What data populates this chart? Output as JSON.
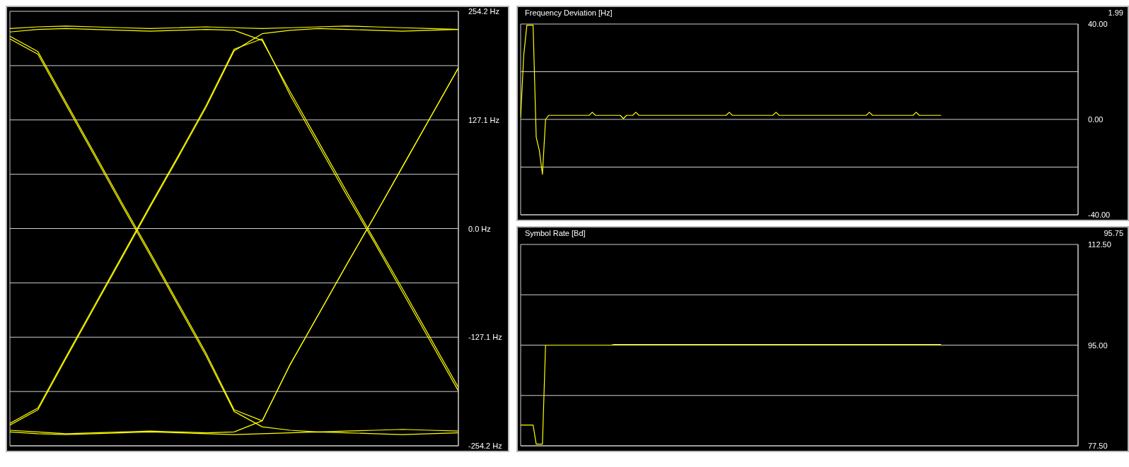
{
  "chart_data": [
    {
      "type": "line",
      "categories": [
        null,
        null,
        null,
        null,
        null,
        null,
        null,
        null,
        null,
        null,
        null,
        null,
        null,
        null,
        null,
        null,
        null
      ],
      "ylim": [
        -254.2,
        254.2
      ],
      "yticks": [
        {
          "value": 254.2,
          "label": "254.2 Hz"
        },
        {
          "value": 190.65,
          "label": null
        },
        {
          "value": 127.1,
          "label": "127.1 Hz"
        },
        {
          "value": 63.55,
          "label": null
        },
        {
          "value": 0,
          "label": "0.0 Hz"
        },
        {
          "value": -63.55,
          "label": null
        },
        {
          "value": -127.1,
          "label": "-127.1 Hz"
        },
        {
          "value": -190.65,
          "label": null
        },
        {
          "value": -254.2,
          "label": "-254.2 Hz"
        }
      ],
      "grid": true,
      "tick_labels": "y",
      "series": [
        {
          "color": "#ffff00",
          "values": [
            234,
            236,
            237,
            236,
            235,
            234,
            235,
            236,
            235,
            234,
            235,
            236,
            237,
            236,
            235,
            234,
            233
          ]
        },
        {
          "color": "#ffff00",
          "values": [
            -238,
            -240,
            -241,
            -240,
            -239,
            -238,
            -239,
            -240,
            -241,
            -240,
            -239,
            -238,
            -239,
            -240,
            -241,
            -240,
            -239
          ]
        },
        {
          "color": "#ffff00",
          "values": [
            225,
            207,
            148,
            89,
            30,
            -28,
            -87,
            -146,
            -212,
            -225,
            -159,
            -101,
            -43,
            14,
            72,
            130,
            188
          ]
        },
        {
          "color": "#ffff00",
          "values": [
            -228,
            -210,
            -150,
            -91,
            -32,
            27,
            85,
            144,
            210,
            222,
            156,
            98,
            40,
            -16,
            -74,
            -132,
            -190
          ]
        },
        {
          "color": "#ffff00",
          "values": [
            222,
            204,
            145,
            86,
            27,
            -31,
            -90,
            -149,
            -214,
            -232,
            -236,
            -238,
            -237,
            -236,
            -235,
            -236,
            -237
          ]
        },
        {
          "color": "#ffff00",
          "values": [
            -230,
            -212,
            -152,
            -93,
            -34,
            25,
            83,
            142,
            208,
            228,
            232,
            234,
            233,
            232,
            231,
            232,
            233
          ]
        },
        {
          "color": "#ffff00",
          "values": [
            230,
            233,
            234,
            233,
            232,
            231,
            232,
            233,
            232,
            220,
            160,
            102,
            44,
            -13,
            -70,
            -128,
            -186
          ]
        },
        {
          "color": "#ffff00",
          "values": [
            -236,
            -238,
            -240,
            -239,
            -238,
            -237,
            -238,
            -239,
            -238,
            -225,
            -159,
            -101,
            -43,
            14,
            72,
            130,
            188
          ]
        }
      ]
    },
    {
      "type": "line",
      "title": "Frequency Deviation [Hz]",
      "annotations": [
        "1.99"
      ],
      "categories": [
        null,
        null,
        null,
        null,
        null,
        null,
        null,
        null,
        null,
        null,
        null,
        null,
        null,
        null,
        null,
        null,
        null,
        null,
        null,
        null,
        null,
        null,
        null,
        null,
        null,
        null,
        null,
        null,
        null,
        null,
        null,
        null,
        null,
        null,
        null,
        null,
        null,
        null,
        null,
        null,
        null,
        null,
        null,
        null,
        null,
        null,
        null,
        null,
        null,
        null,
        null,
        null,
        null,
        null,
        null,
        null,
        null,
        null,
        null,
        null,
        null,
        null,
        null,
        null,
        null,
        null,
        null,
        null,
        null,
        null,
        null,
        null,
        null,
        null,
        null,
        null,
        null,
        null,
        null,
        null,
        null,
        null,
        null,
        null,
        null,
        null,
        null,
        null,
        null,
        null,
        null,
        null,
        null,
        null,
        null,
        null,
        null,
        null,
        null,
        null,
        null,
        null,
        null,
        null,
        null,
        null,
        null,
        null,
        null,
        null,
        null,
        null,
        null,
        null,
        null,
        null,
        null,
        null,
        null,
        null,
        null,
        null,
        null,
        null,
        null,
        null,
        null,
        null,
        null,
        null,
        null,
        null,
        null,
        null,
        null,
        null,
        null,
        null,
        null,
        null,
        null,
        null,
        null,
        null,
        null,
        null,
        null,
        null,
        null,
        null,
        null,
        null,
        null,
        null,
        null,
        null,
        null,
        null,
        null,
        null,
        null,
        null,
        null,
        null,
        null,
        null,
        null,
        null,
        null,
        null,
        null,
        null,
        null,
        null,
        null,
        null,
        null,
        null,
        null,
        null
      ],
      "ylim": [
        -40,
        40
      ],
      "yticks": [
        {
          "value": 40,
          "label": "40.00"
        },
        {
          "value": 20,
          "label": null
        },
        {
          "value": 0,
          "label": "0.00"
        },
        {
          "value": -20,
          "label": null
        },
        {
          "value": -40,
          "label": "-40.00"
        }
      ],
      "grid": true,
      "tick_labels": "y",
      "series": [
        {
          "color": "#ffff00",
          "values": [
            0.8,
            27,
            39.5,
            39.5,
            39.5,
            -7.5,
            -13,
            -23,
            0,
            1.7,
            1.7,
            1.7,
            1.7,
            1.7,
            1.7,
            1.7,
            1.7,
            1.7,
            1.7,
            1.7,
            1.7,
            1.7,
            1.7,
            3,
            1.7,
            1.7,
            1.7,
            1.7,
            1.7,
            1.7,
            1.7,
            1.7,
            1.7,
            0.3,
            1.7,
            1.7,
            1.7,
            3,
            1.7,
            1.7,
            1.7,
            1.7,
            1.7,
            1.7,
            1.7,
            1.7,
            1.7,
            1.7,
            1.7,
            1.7,
            1.7,
            1.7,
            1.7,
            1.7,
            1.7,
            1.7,
            1.7,
            1.7,
            1.7,
            1.7,
            1.7,
            1.7,
            1.7,
            1.7,
            1.7,
            1.7,
            1.7,
            3,
            1.7,
            1.7,
            1.7,
            1.7,
            1.7,
            1.7,
            1.7,
            1.7,
            1.7,
            1.7,
            1.7,
            1.7,
            1.7,
            1.7,
            3,
            1.7,
            1.7,
            1.7,
            1.7,
            1.7,
            1.7,
            1.7,
            1.7,
            1.7,
            1.7,
            1.7,
            1.7,
            1.7,
            1.7,
            1.7,
            1.7,
            1.7,
            1.7,
            1.7,
            1.7,
            1.7,
            1.7,
            1.7,
            1.7,
            1.7,
            1.7,
            1.7,
            1.7,
            1.7,
            3,
            1.7,
            1.7,
            1.7,
            1.7,
            1.7,
            1.7,
            1.7,
            1.7,
            1.7,
            1.7,
            1.7,
            1.7,
            1.7,
            1.7,
            3,
            1.7,
            1.7,
            1.7,
            1.7,
            1.7,
            1.7,
            1.7,
            1.7,
            null,
            null,
            null,
            null,
            null,
            null,
            null,
            null,
            null,
            null,
            null,
            null,
            null,
            null,
            null,
            null,
            null,
            null,
            null,
            null,
            null,
            null,
            null,
            null,
            null,
            null,
            null,
            null,
            null,
            null,
            null,
            null,
            null,
            null,
            null,
            null,
            null,
            null,
            null,
            null,
            null,
            null,
            null,
            null
          ]
        }
      ]
    },
    {
      "type": "line",
      "title": "Symbol Rate [Bd]",
      "annotations": [
        "95.75"
      ],
      "categories": [
        null,
        null,
        null,
        null,
        null,
        null,
        null,
        null,
        null,
        null,
        null,
        null,
        null,
        null,
        null,
        null,
        null,
        null,
        null,
        null,
        null,
        null,
        null,
        null,
        null,
        null,
        null,
        null,
        null,
        null,
        null,
        null,
        null,
        null,
        null,
        null,
        null,
        null,
        null,
        null,
        null,
        null,
        null,
        null,
        null,
        null,
        null,
        null,
        null,
        null,
        null,
        null,
        null,
        null,
        null,
        null,
        null,
        null,
        null,
        null,
        null,
        null,
        null,
        null,
        null,
        null,
        null,
        null,
        null,
        null,
        null,
        null,
        null,
        null,
        null,
        null,
        null,
        null,
        null,
        null,
        null,
        null,
        null,
        null,
        null,
        null,
        null,
        null,
        null,
        null,
        null,
        null,
        null,
        null,
        null,
        null,
        null,
        null,
        null,
        null,
        null,
        null,
        null,
        null,
        null,
        null,
        null,
        null,
        null,
        null,
        null,
        null,
        null,
        null,
        null,
        null,
        null,
        null,
        null,
        null,
        null,
        null,
        null,
        null,
        null,
        null,
        null,
        null,
        null,
        null,
        null,
        null,
        null,
        null,
        null,
        null,
        null,
        null,
        null,
        null,
        null,
        null,
        null,
        null,
        null,
        null,
        null,
        null,
        null,
        null,
        null,
        null,
        null,
        null,
        null,
        null,
        null,
        null,
        null,
        null,
        null,
        null,
        null,
        null,
        null,
        null,
        null,
        null,
        null,
        null,
        null,
        null,
        null,
        null,
        null,
        null,
        null,
        null,
        null,
        null
      ],
      "ylim": [
        77.5,
        112.5
      ],
      "yticks": [
        {
          "value": 112.5,
          "label": "112.50"
        },
        {
          "value": 103.75,
          "label": null
        },
        {
          "value": 95,
          "label": "95.00"
        },
        {
          "value": 86.25,
          "label": null
        },
        {
          "value": 77.5,
          "label": "77.50"
        }
      ],
      "grid": true,
      "tick_labels": "y",
      "series": [
        {
          "color": "#ffff00",
          "values": [
            81.1,
            81.1,
            81.1,
            81.1,
            81.1,
            77.8,
            77.8,
            77.8,
            95,
            95,
            95,
            95,
            95,
            95,
            95,
            95,
            95,
            95,
            95,
            95,
            95,
            95,
            95,
            95,
            95,
            95,
            95,
            95,
            95,
            95,
            95.1,
            95.1,
            95.1,
            95.1,
            95.1,
            95.1,
            95.1,
            95.1,
            95.1,
            95.1,
            95.1,
            95.1,
            95.1,
            95.1,
            95.1,
            95.1,
            95.1,
            95.1,
            95.1,
            95.1,
            95.1,
            95.1,
            95.1,
            95.1,
            95.1,
            95.1,
            95.1,
            95.1,
            95.1,
            95.1,
            95.1,
            95.1,
            95.1,
            95.1,
            95.1,
            95.1,
            95.1,
            95.1,
            95.1,
            95.1,
            95.1,
            95.1,
            95.1,
            95.1,
            95.1,
            95.1,
            95.1,
            95.1,
            95.1,
            95.1,
            95.1,
            95.1,
            95.1,
            95.1,
            95.1,
            95.1,
            95.1,
            95.1,
            95.1,
            95.1,
            95.1,
            95.1,
            95.1,
            95.1,
            95.1,
            95.1,
            95.1,
            95.1,
            95.1,
            95.1,
            95.1,
            95.1,
            95.1,
            95.1,
            95.1,
            95.1,
            95.1,
            95.1,
            95.1,
            95.1,
            95.1,
            95.1,
            95.1,
            95.1,
            95.1,
            95.1,
            95.1,
            95.1,
            95.1,
            95.1,
            95.1,
            95.1,
            95.1,
            95.1,
            95.1,
            95.1,
            95.1,
            95.1,
            95.1,
            95.1,
            95.1,
            95.1,
            95.1,
            95.1,
            95.1,
            95.1,
            null,
            null,
            null,
            null,
            null,
            null,
            null,
            null,
            null,
            null,
            null,
            null,
            null,
            null,
            null,
            null,
            null,
            null,
            null,
            null,
            null,
            null,
            null,
            null,
            null,
            null,
            null,
            null,
            null,
            null,
            null,
            null,
            null,
            null,
            null,
            null,
            null,
            null,
            null,
            null,
            null,
            null,
            null,
            null
          ]
        }
      ]
    }
  ]
}
